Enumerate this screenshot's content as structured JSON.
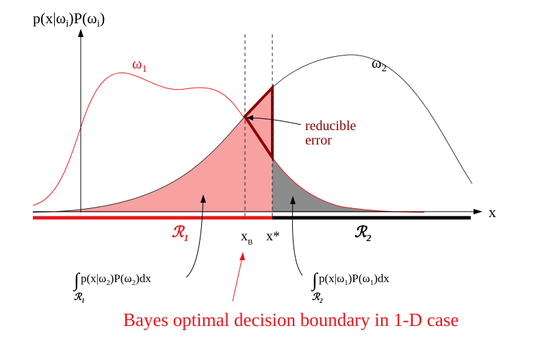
{
  "diagram": {
    "y_axis_label": "p(x|ω",
    "y_axis_label_sub": "i",
    "y_axis_label_mid": ")P(ω",
    "y_axis_label_sub2": "i",
    "y_axis_label_end": ")",
    "x_axis_label": "x",
    "class1_label": "ω",
    "class1_sub": "1",
    "class2_label": "ω",
    "class2_sub": "2",
    "region1_label": "ℛ",
    "region1_sub": "1",
    "region2_label": "ℛ",
    "region2_sub": "2",
    "xb_label": "x",
    "xb_sub": "B",
    "xstar_label": "x*",
    "reducible_line1": "reducible",
    "reducible_line2": "error",
    "integral_left": "p(x|ω",
    "integral_left_sub": "2",
    "integral_left_mid": ")P(ω",
    "integral_left_sub2": "2",
    "integral_left_end": ")dx",
    "integral_left_region": "ℛ",
    "integral_left_region_sub": "1",
    "integral_right": "p(x|ω",
    "integral_right_sub": "1",
    "integral_right_mid": ")P(ω",
    "integral_right_sub2": "1",
    "integral_right_end": ")dx",
    "integral_right_region": "ℛ",
    "integral_right_region_sub": "2",
    "integral_symbol": "∫",
    "caption": "Bayes optimal decision boundary  in 1-D case"
  },
  "colors": {
    "class1_curve": "#e8161b",
    "class2_curve": "#333333",
    "error_fill_red": "#f7a1a1",
    "error_fill_gray": "#8c8c8c",
    "reducible_outline": "#8b0000",
    "region1_bar": "#e8161b",
    "region2_bar": "#000000",
    "caption": "#e8161b"
  }
}
